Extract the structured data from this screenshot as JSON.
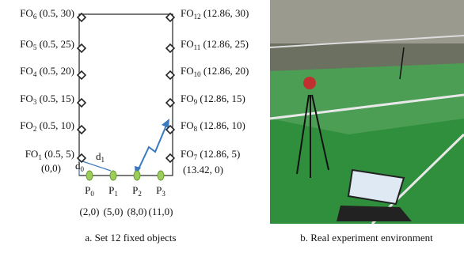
{
  "figure_a": {
    "left_objects": [
      {
        "name": "FO",
        "sub": "6",
        "coord": "(0.5, 30)"
      },
      {
        "name": "FO",
        "sub": "5",
        "coord": "(0.5, 25)"
      },
      {
        "name": "FO",
        "sub": "4",
        "coord": "(0.5, 20)"
      },
      {
        "name": "FO",
        "sub": "3",
        "coord": "(0.5, 15)"
      },
      {
        "name": "FO",
        "sub": "2",
        "coord": "(0.5, 10)"
      },
      {
        "name": "FO",
        "sub": "1",
        "coord": "(0.5, 5)"
      }
    ],
    "right_objects": [
      {
        "name": "FO",
        "sub": "12",
        "coord": "(12.86, 30)"
      },
      {
        "name": "FO",
        "sub": "11",
        "coord": "(12.86, 25)"
      },
      {
        "name": "FO",
        "sub": "10",
        "coord": "(12.86, 20)"
      },
      {
        "name": "FO",
        "sub": "9",
        "coord": "(12.86, 15)"
      },
      {
        "name": "FO",
        "sub": "8",
        "coord": "(12.86, 10)"
      },
      {
        "name": "FO",
        "sub": "7",
        "coord": "(12.86, 5)"
      }
    ],
    "origin": "(0,0)",
    "corner": "(13.42, 0)",
    "distances": [
      {
        "name": "d",
        "sub": "0"
      },
      {
        "name": "d",
        "sub": "1"
      }
    ],
    "points": [
      {
        "name": "P",
        "sub": "0",
        "coord": "(2,0)"
      },
      {
        "name": "P",
        "sub": "1",
        "coord": "(5,0)"
      },
      {
        "name": "P",
        "sub": "2",
        "coord": "(8,0)"
      },
      {
        "name": "P",
        "sub": "3",
        "coord": "(11,0)"
      }
    ],
    "caption": "a. Set 12 fixed objects"
  },
  "figure_b": {
    "caption": "b. Real experiment environment"
  }
}
